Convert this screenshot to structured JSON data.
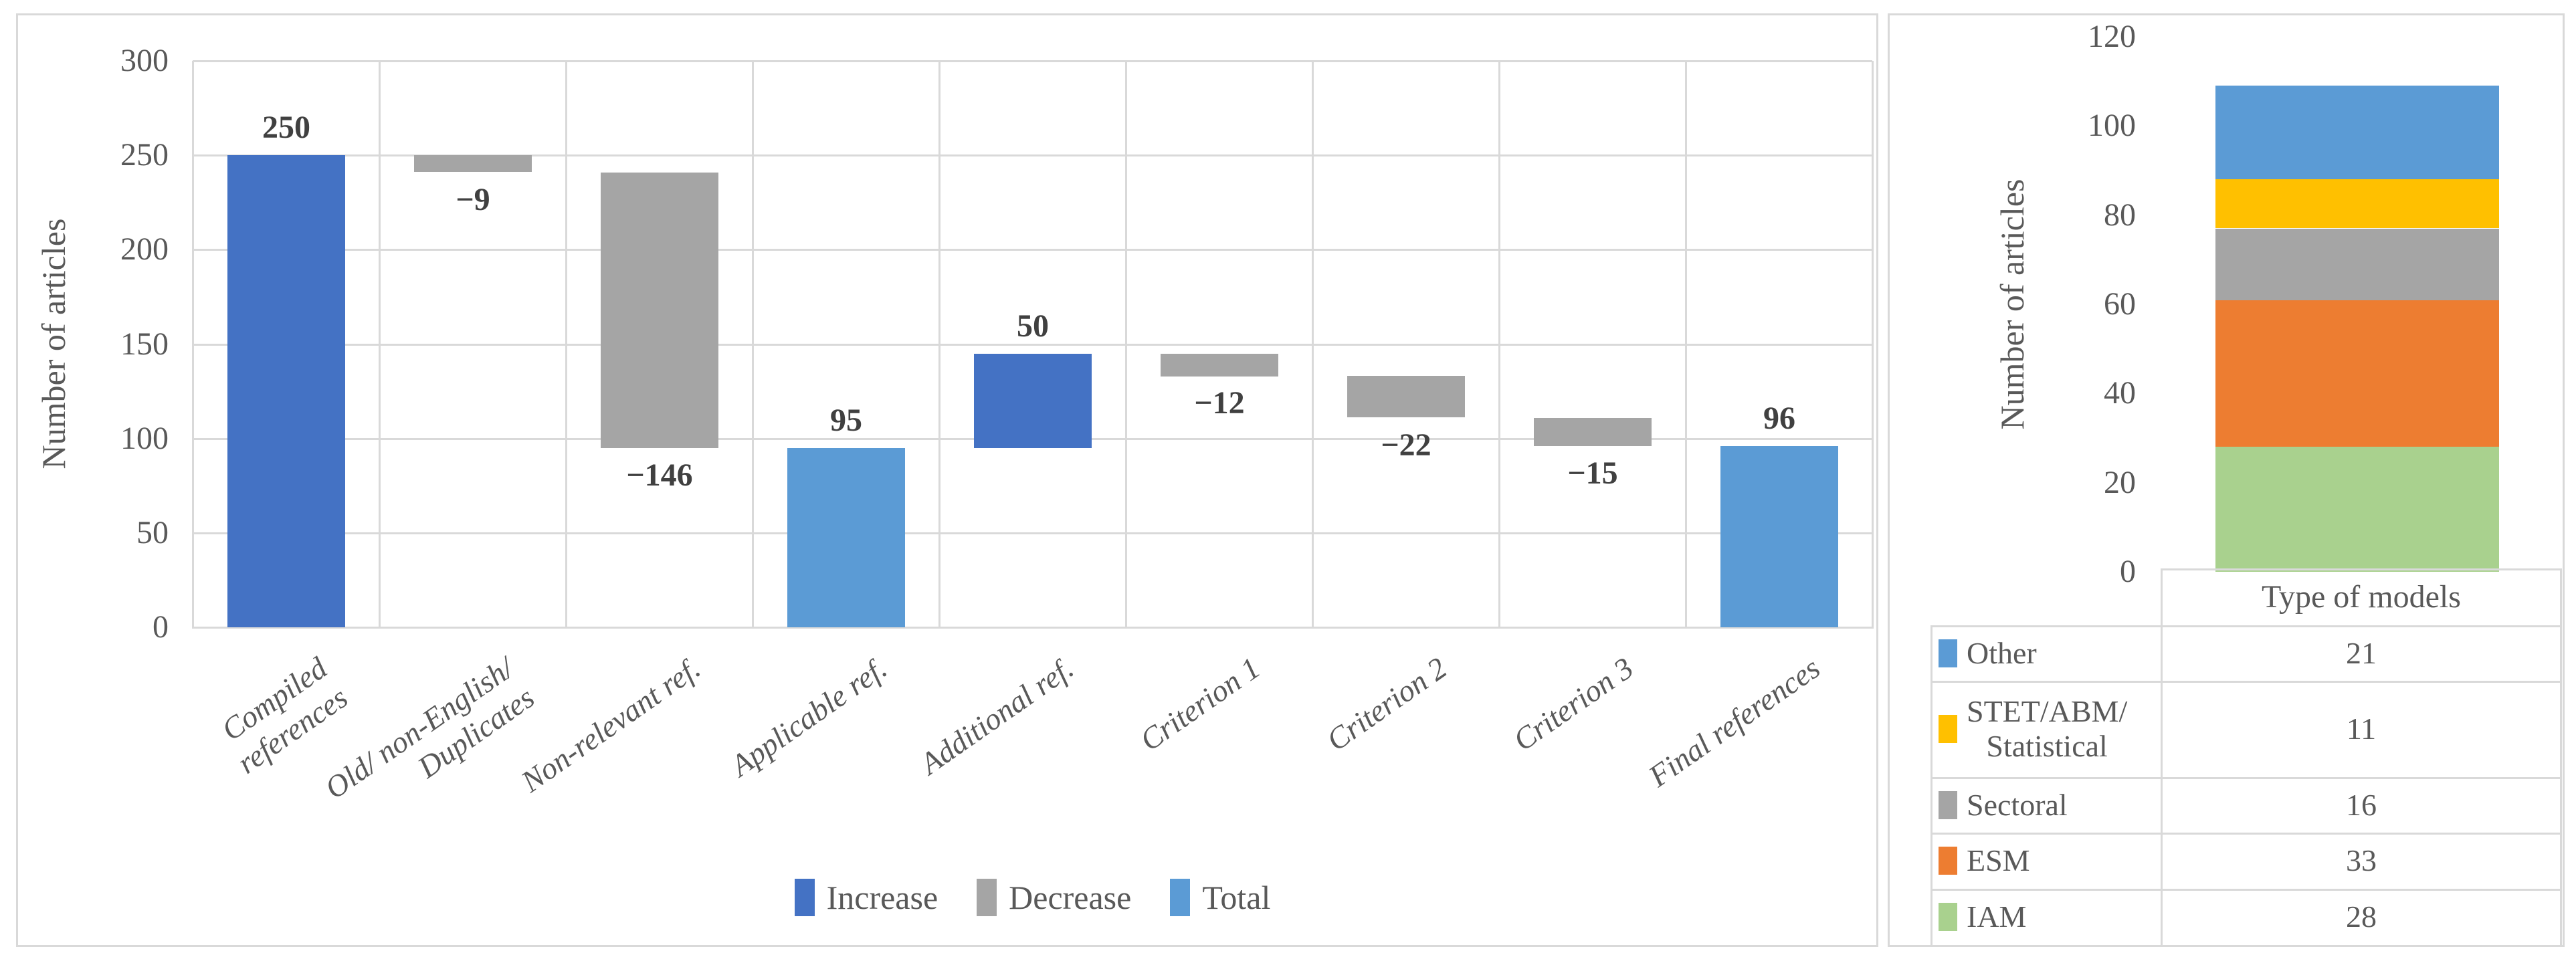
{
  "figure": {
    "background": "#ffffff",
    "panel_border_color": "#d9d9d9",
    "grid_color": "#d9d9d9",
    "text_color": "#595959",
    "data_label_color": "#404040"
  },
  "chart_data": [
    {
      "type": "bar",
      "subtype": "waterfall",
      "title": "",
      "xlabel": "",
      "ylabel": "Number of articles",
      "ylim": [
        0,
        300
      ],
      "yticks": [
        0,
        50,
        100,
        150,
        200,
        250,
        300
      ],
      "grid": true,
      "legend_position": "bottom",
      "legend": [
        {
          "label": "Increase",
          "color": "#4472C4"
        },
        {
          "label": "Decrease",
          "color": "#A5A5A5"
        },
        {
          "label": "Total",
          "color": "#5B9BD5"
        }
      ],
      "categories": [
        "Compiled references",
        "Old/ non-English/ Duplicates",
        "Non-relevant ref.",
        "Applicable ref.",
        "Additional ref.",
        "Criterion 1",
        "Criterion 2",
        "Criterion 3",
        "Final references"
      ],
      "category_lines": [
        [
          "Compiled",
          "references"
        ],
        [
          "Old/ non-English/",
          "Duplicates"
        ],
        [
          "Non-relevant ref."
        ],
        [
          "Applicable ref."
        ],
        [
          "Additional ref."
        ],
        [
          "Criterion 1"
        ],
        [
          "Criterion 2"
        ],
        [
          "Criterion 3"
        ],
        [
          "Final references"
        ]
      ],
      "values": [
        250,
        -9,
        -146,
        95,
        50,
        -12,
        -22,
        -15,
        96
      ],
      "bars": [
        {
          "kind": "increase",
          "start": 0,
          "end": 250,
          "label": "250",
          "label_side": "above"
        },
        {
          "kind": "decrease",
          "start": 250,
          "end": 241,
          "label": "−9",
          "label_side": "below"
        },
        {
          "kind": "decrease",
          "start": 241,
          "end": 95,
          "label": "−146",
          "label_side": "below"
        },
        {
          "kind": "total",
          "start": 0,
          "end": 95,
          "label": "95",
          "label_side": "above"
        },
        {
          "kind": "increase",
          "start": 95,
          "end": 145,
          "label": "50",
          "label_side": "above"
        },
        {
          "kind": "decrease",
          "start": 145,
          "end": 133,
          "label": "−12",
          "label_side": "below"
        },
        {
          "kind": "decrease",
          "start": 133,
          "end": 111,
          "label": "−22",
          "label_side": "below"
        },
        {
          "kind": "decrease",
          "start": 111,
          "end": 96,
          "label": "−15",
          "label_side": "below"
        },
        {
          "kind": "total",
          "start": 0,
          "end": 96,
          "label": "96",
          "label_side": "above"
        }
      ],
      "kind_colors": {
        "increase": "#4472C4",
        "decrease": "#A5A5A5",
        "total": "#5B9BD5"
      }
    },
    {
      "type": "bar",
      "subtype": "stacked",
      "title": "",
      "xlabel": "",
      "ylabel": "Number of articles",
      "ylim": [
        0,
        120
      ],
      "yticks": [
        0,
        20,
        40,
        60,
        80,
        100,
        120
      ],
      "grid": false,
      "total": 109,
      "series": [
        {
          "name": "IAM",
          "value": 28,
          "color": "#A9D18E"
        },
        {
          "name": "ESM",
          "value": 33,
          "color": "#ED7D31"
        },
        {
          "name": "Sectoral",
          "value": 16,
          "color": "#A5A5A5"
        },
        {
          "name": "STET/ABM/ Statistical",
          "value": 11,
          "color": "#FFC000"
        },
        {
          "name": "Other",
          "value": 21,
          "color": "#5B9BD5"
        }
      ],
      "table": {
        "header": "Type of models",
        "rows": [
          {
            "label": "Other",
            "label_lines": [
              "Other"
            ],
            "value": "21",
            "color": "#5B9BD5"
          },
          {
            "label": "STET/ABM/ Statistical",
            "label_lines": [
              "STET/ABM/",
              "Statistical"
            ],
            "value": "11",
            "color": "#FFC000"
          },
          {
            "label": "Sectoral",
            "label_lines": [
              "Sectoral"
            ],
            "value": "16",
            "color": "#A5A5A5"
          },
          {
            "label": "ESM",
            "label_lines": [
              "ESM"
            ],
            "value": "33",
            "color": "#ED7D31"
          },
          {
            "label": "IAM",
            "label_lines": [
              "IAM"
            ],
            "value": "28",
            "color": "#A9D18E"
          }
        ]
      }
    }
  ]
}
